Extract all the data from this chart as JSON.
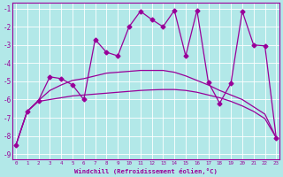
{
  "xlabel": "Windchill (Refroidissement éolien,°C)",
  "background_color": "#b2e8e8",
  "line_color": "#990099",
  "xlim": [
    -0.3,
    23.3
  ],
  "ylim": [
    -9.3,
    -0.7
  ],
  "curve1_x": [
    0,
    1,
    2,
    3,
    4,
    5,
    6,
    7,
    8,
    9,
    10,
    11,
    12,
    13,
    14,
    15,
    16,
    17,
    18,
    19,
    20,
    21,
    22,
    23
  ],
  "curve1_y": [
    -8.5,
    -6.65,
    -6.05,
    -4.75,
    -4.85,
    -5.2,
    -6.0,
    -2.7,
    -3.4,
    -3.6,
    -2.0,
    -1.15,
    -1.6,
    -2.0,
    -1.1,
    -3.6,
    -1.1,
    -5.05,
    -6.2,
    -5.1,
    -1.15,
    -3.0,
    -3.05,
    -8.1
  ],
  "curve2_x": [
    0,
    1,
    2,
    3,
    4,
    5,
    6,
    7,
    8,
    9,
    10,
    11,
    12,
    13,
    14,
    15,
    16,
    17,
    18,
    19,
    20,
    21,
    22,
    23
  ],
  "curve2_y": [
    -8.5,
    -6.65,
    -6.05,
    -5.5,
    -5.2,
    -4.95,
    -4.85,
    -4.7,
    -4.55,
    -4.5,
    -4.45,
    -4.4,
    -4.4,
    -4.4,
    -4.5,
    -4.7,
    -4.95,
    -5.2,
    -5.5,
    -5.75,
    -6.0,
    -6.4,
    -6.8,
    -8.1
  ],
  "curve3_x": [
    0,
    1,
    2,
    3,
    4,
    5,
    6,
    7,
    8,
    9,
    10,
    11,
    12,
    13,
    14,
    15,
    16,
    17,
    18,
    19,
    20,
    21,
    22,
    23
  ],
  "curve3_y": [
    -8.5,
    -6.65,
    -6.1,
    -6.0,
    -5.9,
    -5.8,
    -5.75,
    -5.7,
    -5.65,
    -5.6,
    -5.55,
    -5.5,
    -5.47,
    -5.45,
    -5.45,
    -5.5,
    -5.6,
    -5.75,
    -5.9,
    -6.1,
    -6.35,
    -6.65,
    -7.05,
    -8.1
  ]
}
